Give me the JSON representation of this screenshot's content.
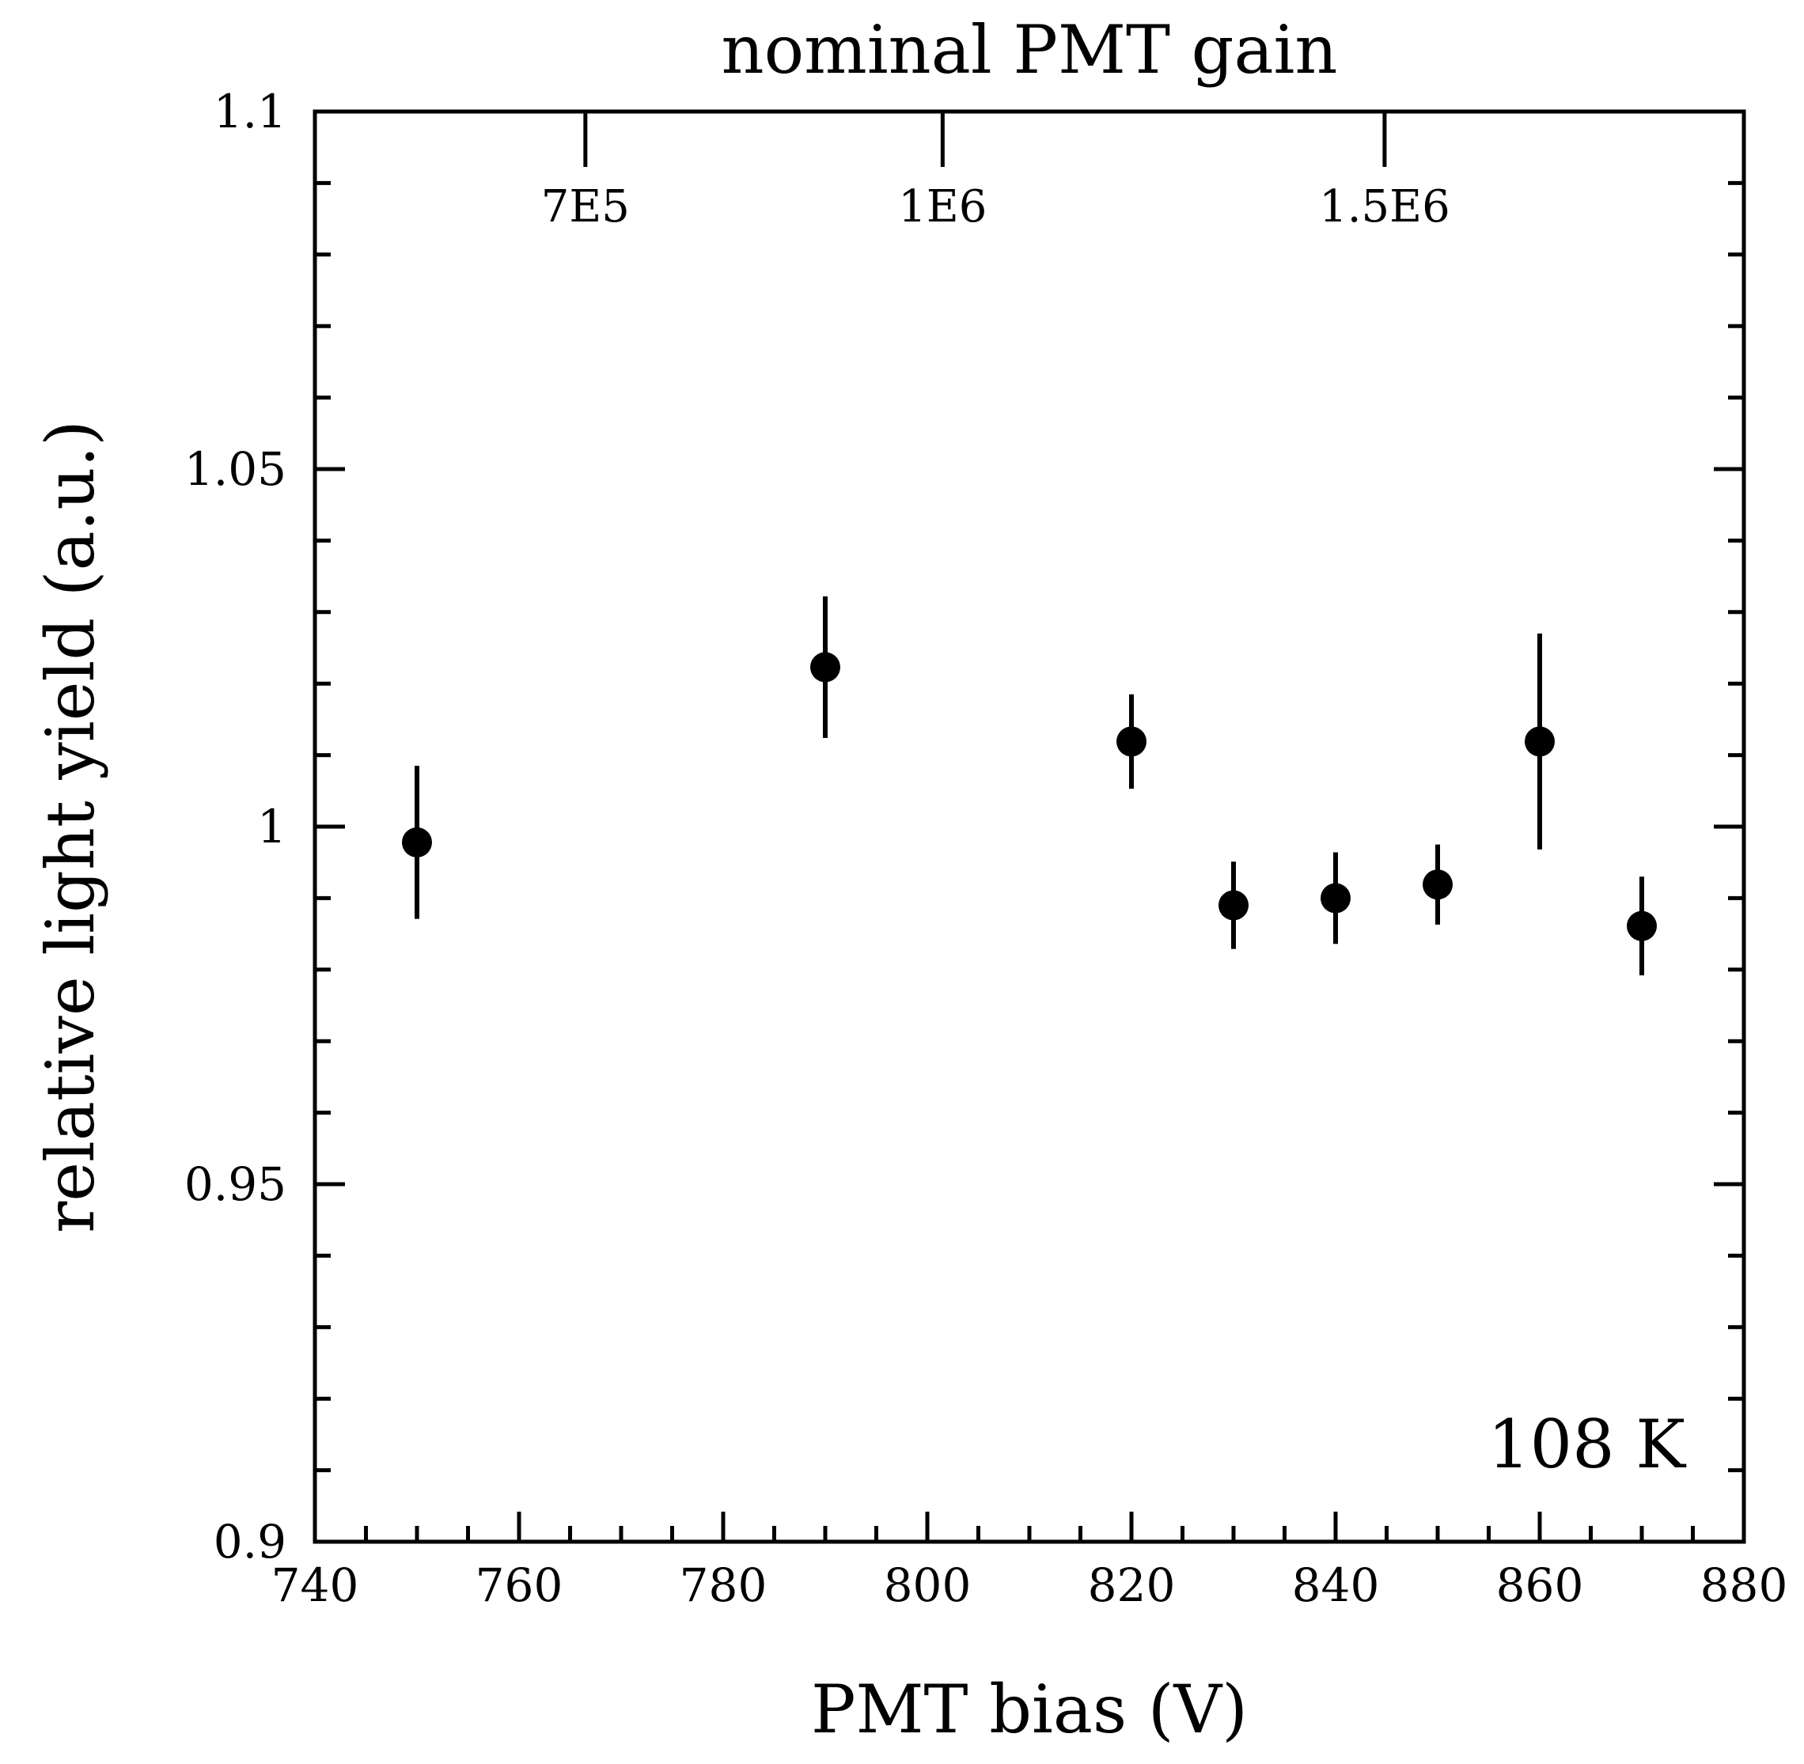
{
  "chart_data": {
    "type": "scatter",
    "title": "nominal PMT gain",
    "xlabel": "PMT bias (V)",
    "ylabel": "relative light yield (a.u.)",
    "annotation": "108 K",
    "xlim": [
      740,
      880
    ],
    "ylim": [
      0.9,
      1.1
    ],
    "x_ticks": [
      740,
      760,
      780,
      800,
      820,
      840,
      860,
      880
    ],
    "x_tick_labels": [
      "740",
      "760",
      "780",
      "800",
      "820",
      "840",
      "860",
      "880"
    ],
    "y_ticks": [
      0.9,
      0.95,
      1.0,
      1.05,
      1.1
    ],
    "y_tick_labels": [
      "0.9",
      "0.95",
      "1",
      "1.05",
      "1.1"
    ],
    "top_axis": {
      "label": "nominal PMT gain",
      "ticks": [
        {
          "at_bias": 766.5,
          "label": "7E5"
        },
        {
          "at_bias": 801.5,
          "label": "1E6"
        },
        {
          "at_bias": 844.8,
          "label": "1.5E6"
        }
      ]
    },
    "series": [
      {
        "name": "108 K",
        "points": [
          {
            "x": 750,
            "y": 0.9978,
            "err": 0.0107
          },
          {
            "x": 790,
            "y": 1.0223,
            "err": 0.0099
          },
          {
            "x": 820,
            "y": 1.0119,
            "err": 0.0066
          },
          {
            "x": 830,
            "y": 0.989,
            "err": 0.0061
          },
          {
            "x": 840,
            "y": 0.99,
            "err": 0.0064
          },
          {
            "x": 850,
            "y": 0.9919,
            "err": 0.0056
          },
          {
            "x": 860,
            "y": 1.0119,
            "err": 0.0151
          },
          {
            "x": 870,
            "y": 0.9861,
            "err": 0.0069
          }
        ]
      }
    ]
  }
}
